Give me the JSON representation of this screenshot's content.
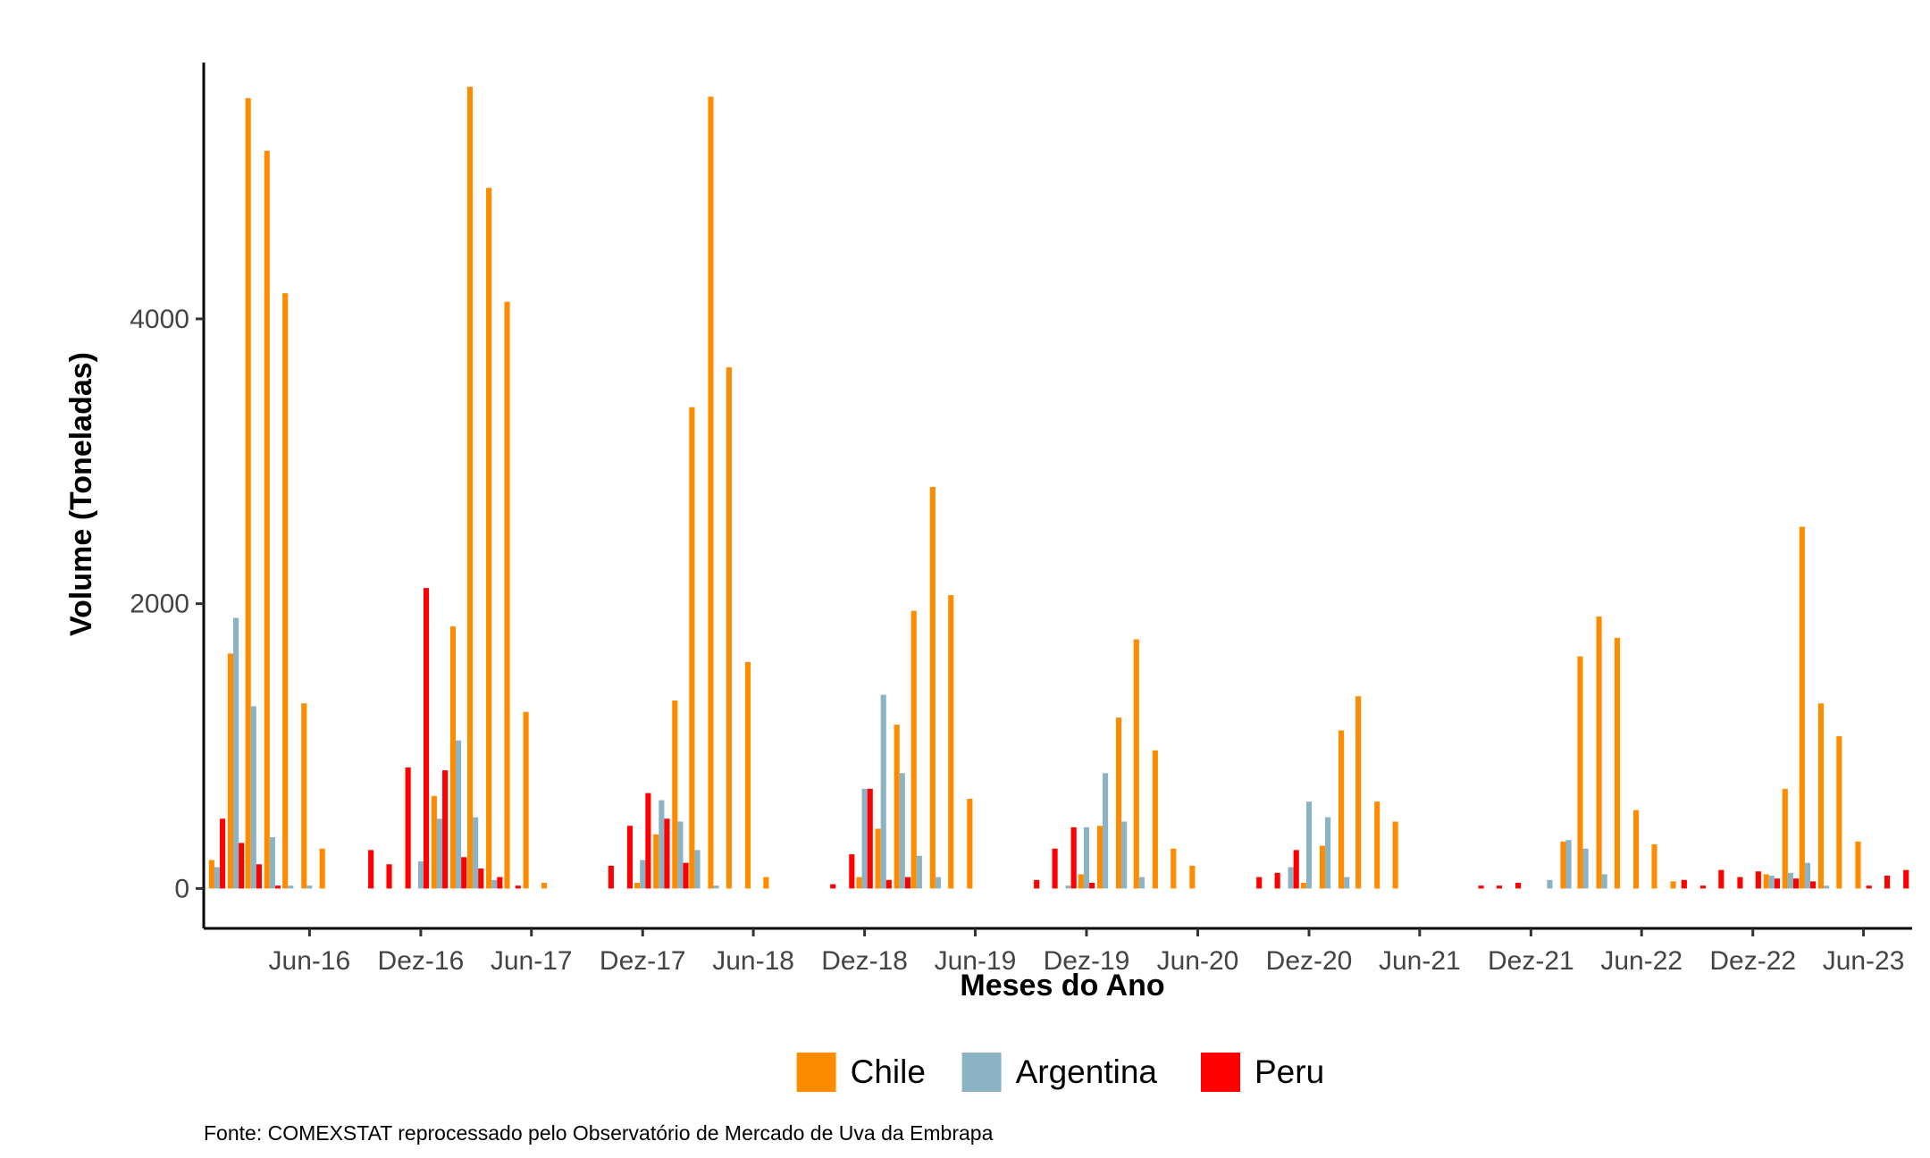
{
  "chart_data": {
    "type": "bar",
    "xlabel": "Meses do Ano",
    "ylabel": "Volume (Toneladas)",
    "caption": "Fonte: COMEXSTAT reprocessado pelo Observatório de Mercado de Uva da Embrapa",
    "ylim": [
      -280,
      5800
    ],
    "y_ticks": [
      0,
      2000,
      4000
    ],
    "x_range": [
      "2015-12-10",
      "2023-08-20"
    ],
    "x_ticks": [
      {
        "date": "2016-06-01",
        "label": "Jun-16"
      },
      {
        "date": "2016-12-01",
        "label": "Dez-16"
      },
      {
        "date": "2017-06-01",
        "label": "Jun-17"
      },
      {
        "date": "2017-12-01",
        "label": "Dez-17"
      },
      {
        "date": "2018-06-01",
        "label": "Jun-18"
      },
      {
        "date": "2018-12-01",
        "label": "Dez-18"
      },
      {
        "date": "2019-06-01",
        "label": "Jun-19"
      },
      {
        "date": "2019-12-01",
        "label": "Dez-19"
      },
      {
        "date": "2020-06-01",
        "label": "Jun-20"
      },
      {
        "date": "2020-12-01",
        "label": "Dez-20"
      },
      {
        "date": "2021-06-01",
        "label": "Jun-21"
      },
      {
        "date": "2021-12-01",
        "label": "Dez-21"
      },
      {
        "date": "2022-06-01",
        "label": "Jun-22"
      },
      {
        "date": "2022-12-01",
        "label": "Dez-22"
      },
      {
        "date": "2023-06-01",
        "label": "Jun-23"
      }
    ],
    "grid": false,
    "legend_position": "bottom",
    "series": [
      {
        "name": "Chile",
        "color": "#FF8C00",
        "points": [
          [
            "2016-01",
            200
          ],
          [
            "2016-02",
            1650
          ],
          [
            "2016-03",
            5550
          ],
          [
            "2016-04",
            5180
          ],
          [
            "2016-05",
            4180
          ],
          [
            "2016-06",
            1300
          ],
          [
            "2016-07",
            280
          ],
          [
            "2017-01",
            650
          ],
          [
            "2017-02",
            1840
          ],
          [
            "2017-03",
            5630
          ],
          [
            "2017-04",
            4920
          ],
          [
            "2017-05",
            4120
          ],
          [
            "2017-06",
            1240
          ],
          [
            "2017-07",
            40
          ],
          [
            "2017-12",
            40
          ],
          [
            "2018-01",
            380
          ],
          [
            "2018-02",
            1320
          ],
          [
            "2018-03",
            3380
          ],
          [
            "2018-04",
            5560
          ],
          [
            "2018-05",
            3660
          ],
          [
            "2018-06",
            1590
          ],
          [
            "2018-07",
            80
          ],
          [
            "2018-12",
            80
          ],
          [
            "2019-01",
            420
          ],
          [
            "2019-02",
            1150
          ],
          [
            "2019-03",
            1950
          ],
          [
            "2019-04",
            2820
          ],
          [
            "2019-05",
            2060
          ],
          [
            "2019-06",
            630
          ],
          [
            "2019-12",
            100
          ],
          [
            "2020-01",
            440
          ],
          [
            "2020-02",
            1200
          ],
          [
            "2020-03",
            1750
          ],
          [
            "2020-04",
            970
          ],
          [
            "2020-05",
            280
          ],
          [
            "2020-06",
            160
          ],
          [
            "2020-12",
            40
          ],
          [
            "2021-01",
            300
          ],
          [
            "2021-02",
            1110
          ],
          [
            "2021-03",
            1350
          ],
          [
            "2021-04",
            610
          ],
          [
            "2021-05",
            470
          ],
          [
            "2022-02",
            330
          ],
          [
            "2022-03",
            1630
          ],
          [
            "2022-04",
            1910
          ],
          [
            "2022-05",
            1760
          ],
          [
            "2022-06",
            550
          ],
          [
            "2022-07",
            310
          ],
          [
            "2022-08",
            50
          ],
          [
            "2023-01",
            100
          ],
          [
            "2023-02",
            700
          ],
          [
            "2023-03",
            2540
          ],
          [
            "2023-04",
            1300
          ],
          [
            "2023-05",
            1070
          ],
          [
            "2023-06",
            330
          ]
        ]
      },
      {
        "name": "Argentina",
        "color": "#8BB3C4",
        "points": [
          [
            "2016-01",
            150
          ],
          [
            "2016-02",
            1900
          ],
          [
            "2016-03",
            1280
          ],
          [
            "2016-04",
            360
          ],
          [
            "2016-05",
            20
          ],
          [
            "2016-06",
            20
          ],
          [
            "2016-12",
            190
          ],
          [
            "2017-01",
            490
          ],
          [
            "2017-02",
            1040
          ],
          [
            "2017-03",
            500
          ],
          [
            "2017-04",
            60
          ],
          [
            "2017-12",
            200
          ],
          [
            "2018-01",
            620
          ],
          [
            "2018-02",
            470
          ],
          [
            "2018-03",
            270
          ],
          [
            "2018-04",
            20
          ],
          [
            "2018-12",
            700
          ],
          [
            "2019-01",
            1360
          ],
          [
            "2019-02",
            810
          ],
          [
            "2019-03",
            230
          ],
          [
            "2019-04",
            80
          ],
          [
            "2019-11",
            20
          ],
          [
            "2019-12",
            430
          ],
          [
            "2020-01",
            810
          ],
          [
            "2020-02",
            470
          ],
          [
            "2020-03",
            80
          ],
          [
            "2020-11",
            150
          ],
          [
            "2020-12",
            610
          ],
          [
            "2021-01",
            500
          ],
          [
            "2021-02",
            80
          ],
          [
            "2022-01",
            60
          ],
          [
            "2022-02",
            340
          ],
          [
            "2022-03",
            280
          ],
          [
            "2022-04",
            100
          ],
          [
            "2023-01",
            90
          ],
          [
            "2023-02",
            110
          ],
          [
            "2023-03",
            180
          ],
          [
            "2023-04",
            20
          ]
        ]
      },
      {
        "name": "Peru",
        "color": "#FF0000",
        "points": [
          [
            "2016-01",
            490
          ],
          [
            "2016-02",
            320
          ],
          [
            "2016-03",
            170
          ],
          [
            "2016-04",
            20
          ],
          [
            "2016-09",
            270
          ],
          [
            "2016-10",
            170
          ],
          [
            "2016-11",
            850
          ],
          [
            "2016-12",
            2110
          ],
          [
            "2017-01",
            830
          ],
          [
            "2017-02",
            220
          ],
          [
            "2017-03",
            140
          ],
          [
            "2017-04",
            80
          ],
          [
            "2017-05",
            20
          ],
          [
            "2017-10",
            160
          ],
          [
            "2017-11",
            440
          ],
          [
            "2017-12",
            670
          ],
          [
            "2018-01",
            490
          ],
          [
            "2018-02",
            180
          ],
          [
            "2018-10",
            30
          ],
          [
            "2018-11",
            240
          ],
          [
            "2018-12",
            700
          ],
          [
            "2019-01",
            60
          ],
          [
            "2019-02",
            80
          ],
          [
            "2019-09",
            60
          ],
          [
            "2019-10",
            280
          ],
          [
            "2019-11",
            430
          ],
          [
            "2019-12",
            40
          ],
          [
            "2020-09",
            80
          ],
          [
            "2020-10",
            110
          ],
          [
            "2020-11",
            270
          ],
          [
            "2021-09",
            20
          ],
          [
            "2021-10",
            20
          ],
          [
            "2021-11",
            40
          ],
          [
            "2022-08",
            60
          ],
          [
            "2022-09",
            20
          ],
          [
            "2022-10",
            130
          ],
          [
            "2022-11",
            80
          ],
          [
            "2022-12",
            120
          ],
          [
            "2023-01",
            70
          ],
          [
            "2023-02",
            70
          ],
          [
            "2023-03",
            50
          ],
          [
            "2023-06",
            20
          ],
          [
            "2023-07",
            90
          ],
          [
            "2023-08",
            130
          ]
        ]
      }
    ]
  }
}
